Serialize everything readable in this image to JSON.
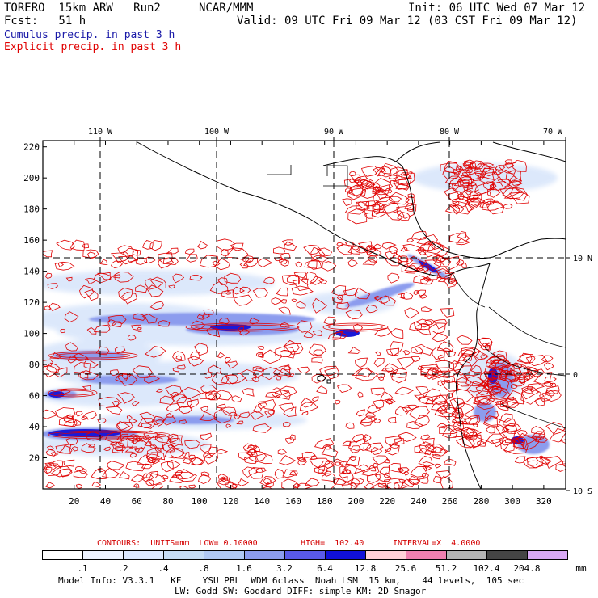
{
  "header": {
    "model": "TORERO  15km ARW   Run2",
    "center": "NCAR/MMM",
    "init": "Init: 06 UTC Wed 07 Mar 12",
    "fcst": "Fcst:   51 h",
    "valid": "Valid: 09 UTC Fri 09 Mar 12 (03 CST Fri 09 Mar 12)",
    "field1": "Cumulus precip. in past 3 h",
    "field2": "Explicit precip. in past 3 h"
  },
  "map": {
    "lon_labels": [
      "110 W",
      "100 W",
      "90 W",
      "80 W",
      "70 W"
    ],
    "lat_labels": [
      "10 N",
      "0",
      "10 S"
    ],
    "y_ticks": [
      "220",
      "200",
      "180",
      "160",
      "140",
      "120",
      "100",
      "80",
      "60",
      "40",
      "20"
    ],
    "x_ticks": [
      "20",
      "40",
      "60",
      "80",
      "100",
      "120",
      "140",
      "160",
      "180",
      "200",
      "220",
      "240",
      "260",
      "280",
      "300",
      "320"
    ],
    "grid_range": {
      "x": [
        0,
        334
      ],
      "y": [
        0,
        224
      ]
    },
    "shading_color": "#3a3aee",
    "contour_color": "#e00000"
  },
  "contours_caption": {
    "units": "CONTOURS:  UNITS=mm  LOW= 0.10000",
    "high": "HIGH=  102.40",
    "interval": "INTERVAL=X  4.0000"
  },
  "legend": {
    "labels": [
      ".1",
      ".2",
      ".4",
      ".8",
      "1.6",
      "3.2",
      "6.4",
      "12.8",
      "25.6",
      "51.2",
      "102.4",
      "204.8"
    ],
    "unit": "mm",
    "colors": [
      "#ffffff",
      "#eef3ff",
      "#dce8ff",
      "#c6dcf6",
      "#b0c8f4",
      "#8c9cee",
      "#5a5ae8",
      "#1010d8",
      "#ffd0d8",
      "#f080b0",
      "#b4b4b4",
      "#444444",
      "#d8a8f4"
    ]
  },
  "footer": {
    "line1": "Model Info: V3.3.1   KF    YSU PBL  WDM 6class  Noah LSM  15 km,    44 levels,  105 sec",
    "line2": "LW: Godd SW: Goddard DIFF: simple KM: 2D Smagor"
  }
}
